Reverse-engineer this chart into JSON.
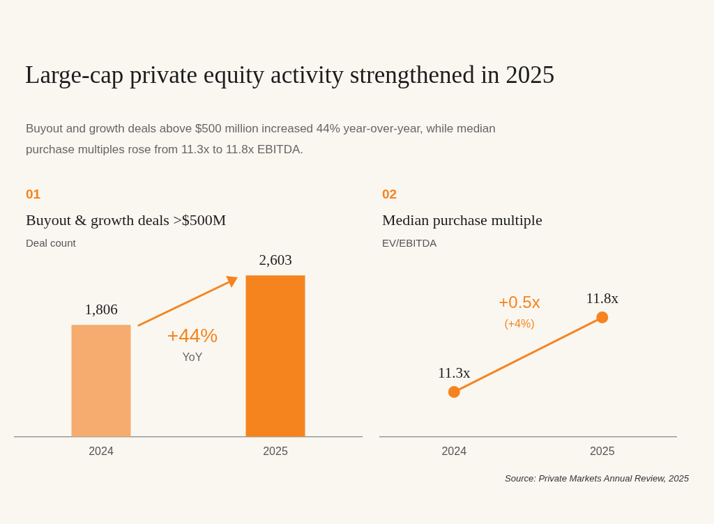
{
  "chart_data": [
    {
      "type": "bar",
      "title": "Buyout & growth deals >$500M",
      "subtitle": "Deal count",
      "categories": [
        "2024",
        "2025"
      ],
      "values": [
        1806,
        2603
      ],
      "colors": [
        "#f5ac6e",
        "#f5841f"
      ],
      "value_labels": [
        "1,806",
        "2,603"
      ],
      "tick_labels": "x",
      "grid": false,
      "legend": false,
      "annotations": [
        "Large-cap private equity activity strengthened in 2025",
        "Buyout and growth deals above $500 million increased 44% year-over-year, while median purchase multiples rose from 11.3x to 11.8x EBITDA.",
        "01",
        "+44%",
        "YoY"
      ]
    },
    {
      "type": "line",
      "title": "Median purchase multiple",
      "subtitle": "EV/EBITDA",
      "categories": [
        "2024",
        "2025"
      ],
      "values": [
        11.3,
        11.8
      ],
      "color": "#f5841f",
      "marker": "circle",
      "line_style": "solid",
      "value_labels": [
        "11.3x",
        "11.8x"
      ],
      "tick_labels": "x",
      "grid": false,
      "legend": false,
      "annotations": [
        "02",
        "+0.5x",
        "(+4%)",
        "Source: Private Markets Annual Review, 2025"
      ]
    }
  ]
}
